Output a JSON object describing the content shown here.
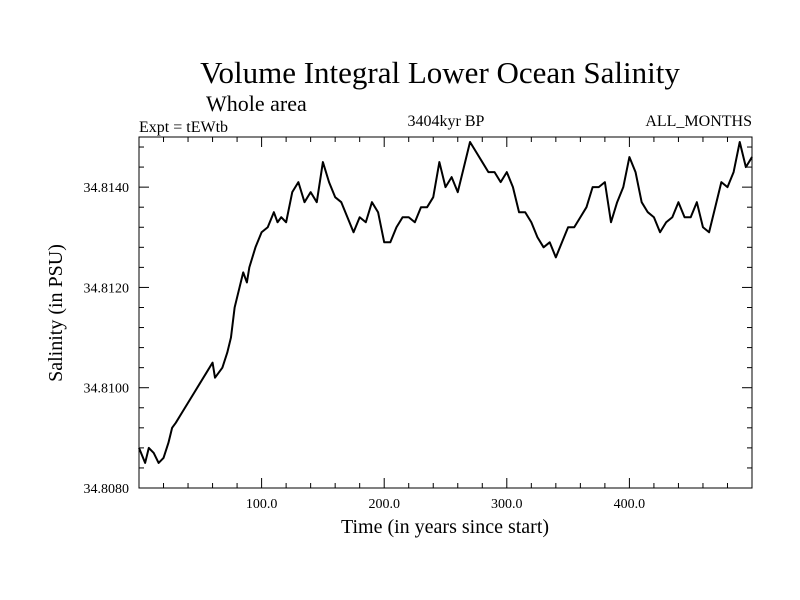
{
  "chart_data": {
    "type": "line",
    "title": "Volume Integral Lower Ocean Salinity",
    "subtitle": "Whole area",
    "experiment_label": "Expt = tEWtb",
    "period_label": "3404kyr BP",
    "months_label": "ALL_MONTHS",
    "xlabel": "Time (in years since start)",
    "ylabel": "Salinity (in PSU)",
    "xlim": [
      0,
      500
    ],
    "ylim": [
      34.808,
      34.815
    ],
    "xticks": [
      100,
      200,
      300,
      400
    ],
    "xtick_labels": [
      "100.0",
      "200.0",
      "300.0",
      "400.0"
    ],
    "yticks": [
      34.808,
      34.81,
      34.812,
      34.814
    ],
    "ytick_labels": [
      "34.8080",
      "34.8100",
      "34.8120",
      "34.8140"
    ],
    "series": [
      {
        "name": "Salinity",
        "x": [
          0,
          5,
          8,
          12,
          16,
          20,
          24,
          27,
          30,
          35,
          40,
          45,
          50,
          55,
          60,
          62,
          65,
          68,
          72,
          75,
          78,
          82,
          85,
          88,
          90,
          95,
          100,
          105,
          110,
          113,
          116,
          120,
          125,
          130,
          135,
          140,
          145,
          150,
          155,
          160,
          165,
          170,
          175,
          180,
          185,
          190,
          195,
          200,
          205,
          210,
          215,
          220,
          225,
          230,
          235,
          240,
          245,
          250,
          255,
          260,
          265,
          270,
          275,
          280,
          285,
          290,
          295,
          300,
          305,
          310,
          315,
          320,
          325,
          330,
          335,
          340,
          345,
          350,
          355,
          360,
          365,
          370,
          375,
          380,
          385,
          390,
          395,
          400,
          405,
          410,
          415,
          420,
          425,
          430,
          435,
          440,
          445,
          450,
          455,
          460,
          465,
          470,
          475,
          480,
          485,
          490,
          495,
          500
        ],
        "values": [
          34.8088,
          34.8085,
          34.8088,
          34.8087,
          34.8085,
          34.8086,
          34.8089,
          34.8092,
          34.8093,
          34.8095,
          34.8097,
          34.8099,
          34.8101,
          34.8103,
          34.8105,
          34.8102,
          34.8103,
          34.8104,
          34.8107,
          34.811,
          34.8116,
          34.812,
          34.8123,
          34.8121,
          34.8124,
          34.8128,
          34.8131,
          34.8132,
          34.8135,
          34.8133,
          34.8134,
          34.8133,
          34.8139,
          34.8141,
          34.8137,
          34.8139,
          34.8137,
          34.8145,
          34.8141,
          34.8138,
          34.8137,
          34.8134,
          34.8131,
          34.8134,
          34.8133,
          34.8137,
          34.8135,
          34.8129,
          34.8129,
          34.8132,
          34.8134,
          34.8134,
          34.8133,
          34.8136,
          34.8136,
          34.8138,
          34.8145,
          34.814,
          34.8142,
          34.8139,
          34.8144,
          34.8149,
          34.8147,
          34.8145,
          34.8143,
          34.8143,
          34.8141,
          34.8143,
          34.814,
          34.8135,
          34.8135,
          34.8133,
          34.813,
          34.8128,
          34.8129,
          34.8126,
          34.8129,
          34.8132,
          34.8132,
          34.8134,
          34.8136,
          34.814,
          34.814,
          34.8141,
          34.8133,
          34.8137,
          34.814,
          34.8146,
          34.8143,
          34.8137,
          34.8135,
          34.8134,
          34.8131,
          34.8133,
          34.8134,
          34.8137,
          34.8134,
          34.8134,
          34.8137,
          34.8132,
          34.8131,
          34.8136,
          34.8141,
          34.814,
          34.8143,
          34.8149,
          34.8144,
          34.8146
        ]
      }
    ]
  }
}
